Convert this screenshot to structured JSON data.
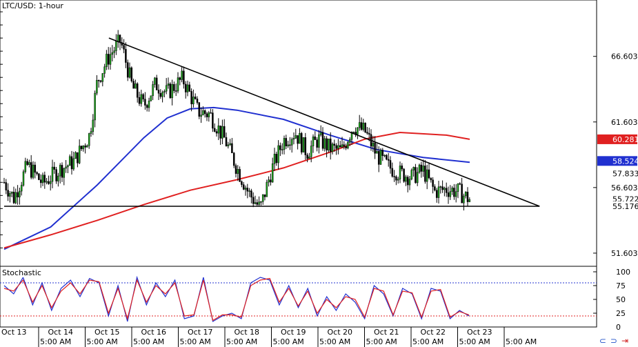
{
  "chart_data": [
    {
      "type": "candlestick",
      "title": "LTC/USD: 1-hour",
      "price_axis": {
        "ticks": [
          "66.603",
          "61.603",
          "56.603",
          "51.603"
        ],
        "ylim": [
          50.6,
          70.9
        ]
      },
      "time_axis": {
        "date_labels": [
          "Oct 13",
          "Oct 14",
          "Oct 15",
          "Oct 16",
          "Oct 17",
          "Oct 18",
          "Oct 19",
          "Oct 20",
          "Oct 21",
          "Oct 22",
          "Oct 23"
        ],
        "time_labels": [
          "5:00 AM",
          "5:00 AM",
          "5:00 AM",
          "5:00 AM",
          "5:00 AM",
          "5:00 AM",
          "5:00 AM",
          "5:00 AM",
          "5:00 AM",
          "5:00 AM",
          "5:00 AM"
        ]
      },
      "price_path": [
        [
          "Oct 13 00:00",
          57.0
        ],
        [
          "Oct 13 05:00",
          55.8
        ],
        [
          "Oct 13 12:00",
          58.3
        ],
        [
          "Oct 13 20:00",
          56.9
        ],
        [
          "Oct 14 04:00",
          57.9
        ],
        [
          "Oct 14 12:00",
          58.6
        ],
        [
          "Oct 14 20:00",
          60.6
        ],
        [
          "Oct 15 00:00",
          64.7
        ],
        [
          "Oct 15 06:00",
          66.6
        ],
        [
          "Oct 15 12:00",
          67.8
        ],
        [
          "Oct 15 18:00",
          64.3
        ],
        [
          "Oct 16 00:00",
          62.8
        ],
        [
          "Oct 16 06:00",
          64.5
        ],
        [
          "Oct 16 12:00",
          63.8
        ],
        [
          "Oct 16 20:00",
          64.9
        ],
        [
          "Oct 17 04:00",
          62.4
        ],
        [
          "Oct 17 10:00",
          62.2
        ],
        [
          "Oct 17 18:00",
          60.2
        ],
        [
          "Oct 18 00:00",
          58.1
        ],
        [
          "Oct 18 06:00",
          56.2
        ],
        [
          "Oct 18 12:00",
          55.0
        ],
        [
          "Oct 18 18:00",
          58.0
        ],
        [
          "Oct 19 00:00",
          60.2
        ],
        [
          "Oct 19 06:00",
          60.8
        ],
        [
          "Oct 19 12:00",
          59.3
        ],
        [
          "Oct 19 18:00",
          60.3
        ],
        [
          "Oct 20 00:00",
          59.6
        ],
        [
          "Oct 20 06:00",
          59.4
        ],
        [
          "Oct 20 12:00",
          61.3
        ],
        [
          "Oct 20 18:00",
          60.9
        ],
        [
          "Oct 21 00:00",
          59.1
        ],
        [
          "Oct 21 06:00",
          58.2
        ],
        [
          "Oct 21 12:00",
          57.7
        ],
        [
          "Oct 21 18:00",
          57.4
        ],
        [
          "Oct 22 00:00",
          57.9
        ],
        [
          "Oct 22 06:00",
          56.3
        ],
        [
          "Oct 22 12:00",
          56.5
        ],
        [
          "Oct 22 18:00",
          56.3
        ],
        [
          "Oct 23 00:00",
          55.7
        ]
      ],
      "moving_averages": [
        {
          "color": "#2030d0",
          "path": [
            [
              "Oct 13 00:00",
              51.9
            ],
            [
              "Oct 14 00:00",
              53.6
            ],
            [
              "Oct 15 00:00",
              56.8
            ],
            [
              "Oct 16 00:00",
              60.4
            ],
            [
              "Oct 16 12:00",
              61.9
            ],
            [
              "Oct 17 00:00",
              62.6
            ],
            [
              "Oct 17 12:00",
              62.7
            ],
            [
              "Oct 18 00:00",
              62.5
            ],
            [
              "Oct 19 00:00",
              61.8
            ],
            [
              "Oct 20 00:00",
              60.6
            ],
            [
              "Oct 21 00:00",
              59.5
            ],
            [
              "Oct 22 00:00",
              58.9
            ],
            [
              "Oct 23 00:00",
              58.524
            ]
          ]
        },
        {
          "color": "#e02020",
          "path": [
            [
              "Oct 13 00:00",
              52.0
            ],
            [
              "Oct 14 00:00",
              53.0
            ],
            [
              "Oct 15 00:00",
              54.1
            ],
            [
              "Oct 16 00:00",
              55.3
            ],
            [
              "Oct 17 00:00",
              56.4
            ],
            [
              "Oct 18 00:00",
              57.2
            ],
            [
              "Oct 19 00:00",
              58.1
            ],
            [
              "Oct 20 00:00",
              59.3
            ],
            [
              "Oct 20 18:00",
              60.3
            ],
            [
              "Oct 21 12:00",
              60.8
            ],
            [
              "Oct 22 12:00",
              60.6
            ],
            [
              "Oct 23 00:00",
              60.281
            ]
          ]
        }
      ],
      "trendlines": [
        [
          [
            "Oct 15 06:00",
            68.0
          ],
          [
            "Oct 24 12:00",
            55.176
          ]
        ],
        [
          [
            "Oct 13 00:00",
            55.176
          ],
          [
            "Oct 24 12:00",
            55.176
          ]
        ]
      ],
      "price_badges": [
        {
          "label": "60.281",
          "value": 60.281,
          "bg": "#e02020",
          "fg": "#ffffff"
        },
        {
          "label": "58.524",
          "value": 58.524,
          "bg": "#2030d0",
          "fg": "#ffffff"
        },
        {
          "label": "57.833",
          "value": 57.833,
          "bg": "#ffffff",
          "fg": "#000000"
        },
        {
          "label": "55.722",
          "value": 55.722,
          "bg": "#ffffff",
          "fg": "#000000"
        },
        {
          "label": "55.176",
          "value": 55.176,
          "bg": "#ffffff",
          "fg": "#000000"
        }
      ]
    },
    {
      "type": "line",
      "title": "Stochastic",
      "ylim": [
        0,
        100
      ],
      "y_ticks": [
        "100",
        "75",
        "50",
        "25",
        "0"
      ],
      "levels": [
        80,
        20
      ],
      "series": [
        {
          "color": "#2030d0",
          "values": [
            75,
            60,
            90,
            40,
            80,
            30,
            70,
            85,
            55,
            88,
            80,
            20,
            75,
            10,
            90,
            40,
            80,
            55,
            85,
            15,
            20,
            90,
            10,
            20,
            25,
            15,
            80,
            90,
            85,
            40,
            75,
            35,
            70,
            20,
            55,
            30,
            60,
            45,
            15,
            75,
            60,
            20,
            70,
            60,
            15,
            70,
            65,
            15,
            30,
            20
          ]
        },
        {
          "color": "#e02020",
          "values": [
            70,
            65,
            85,
            45,
            75,
            35,
            65,
            80,
            60,
            85,
            82,
            25,
            70,
            15,
            85,
            45,
            75,
            60,
            80,
            20,
            22,
            85,
            12,
            22,
            22,
            18,
            75,
            85,
            88,
            45,
            70,
            38,
            65,
            25,
            50,
            35,
            55,
            50,
            18,
            70,
            65,
            22,
            65,
            62,
            18,
            65,
            68,
            18,
            28,
            22
          ]
        }
      ]
    }
  ],
  "icons": {
    "tools_icon": "link-icon",
    "close_icon": "arrow-icon"
  },
  "colors": {
    "up_candle": "#1aa81a",
    "down_candle": "#000000",
    "ma_blue": "#2030d0",
    "ma_red": "#e02020"
  }
}
